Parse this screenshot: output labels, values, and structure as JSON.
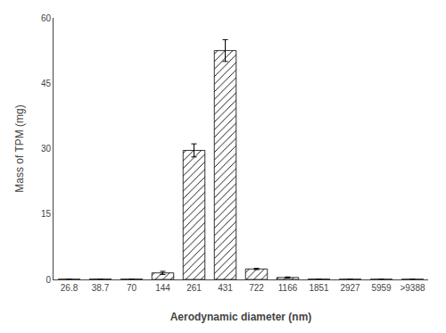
{
  "chart_data": {
    "type": "bar",
    "categories": [
      "26.8",
      "38.7",
      "70",
      "144",
      "261",
      "431",
      "722",
      "1166",
      "1851",
      "2927",
      "5959",
      ">9388"
    ],
    "values": [
      0.05,
      0.08,
      0.07,
      1.5,
      29.6,
      52.5,
      2.4,
      0.45,
      0.07,
      0.05,
      0.04,
      0.04
    ],
    "errors": [
      0.01,
      0.02,
      0.01,
      0.35,
      1.5,
      2.5,
      0.15,
      0.12,
      0.02,
      0.01,
      0.01,
      0.01
    ],
    "xlabel": "Aerodynamic diameter (nm)",
    "ylabel": "Mass of TPM (mg)",
    "ylim": [
      0,
      60
    ],
    "yticks": [
      0,
      15,
      30,
      45,
      60
    ],
    "color": "white",
    "grid": false
  }
}
